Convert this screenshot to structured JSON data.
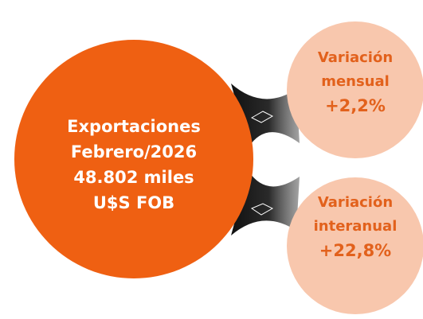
{
  "main": {
    "lines": [
      "Exportaciones",
      "Febrero/2026",
      "48.802 miles",
      "U$S FOB"
    ]
  },
  "bubbles": [
    {
      "lines": [
        "Variación",
        "mensual",
        "+2,2%"
      ]
    },
    {
      "lines": [
        "Variación",
        "interanual",
        "+22,8%"
      ]
    }
  ]
}
